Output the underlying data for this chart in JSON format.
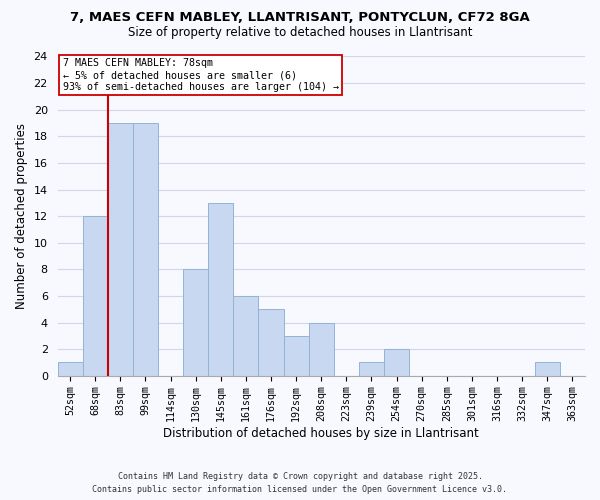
{
  "title1": "7, MAES CEFN MABLEY, LLANTRISANT, PONTYCLUN, CF72 8GA",
  "title2": "Size of property relative to detached houses in Llantrisant",
  "xlabel": "Distribution of detached houses by size in Llantrisant",
  "ylabel": "Number of detached properties",
  "categories": [
    "52sqm",
    "68sqm",
    "83sqm",
    "99sqm",
    "114sqm",
    "130sqm",
    "145sqm",
    "161sqm",
    "176sqm",
    "192sqm",
    "208sqm",
    "223sqm",
    "239sqm",
    "254sqm",
    "270sqm",
    "285sqm",
    "301sqm",
    "316sqm",
    "332sqm",
    "347sqm",
    "363sqm"
  ],
  "values": [
    1,
    12,
    19,
    19,
    0,
    8,
    13,
    6,
    5,
    3,
    4,
    0,
    1,
    2,
    0,
    0,
    0,
    0,
    0,
    1,
    0
  ],
  "bar_color": "#c8d8f0",
  "bar_edge_color": "#92b4d4",
  "annotation_line1": "7 MAES CEFN MABLEY: 78sqm",
  "annotation_line2": "← 5% of detached houses are smaller (6)",
  "annotation_line3": "93% of semi-detached houses are larger (104) →",
  "ylim": [
    0,
    24
  ],
  "yticks": [
    0,
    2,
    4,
    6,
    8,
    10,
    12,
    14,
    16,
    18,
    20,
    22,
    24
  ],
  "grid_color": "#d0d8e8",
  "property_line_color": "#cc0000",
  "footer1": "Contains HM Land Registry data © Crown copyright and database right 2025.",
  "footer2": "Contains public sector information licensed under the Open Government Licence v3.0.",
  "bg_color": "#f8f8ff",
  "property_line_x": 1.5
}
